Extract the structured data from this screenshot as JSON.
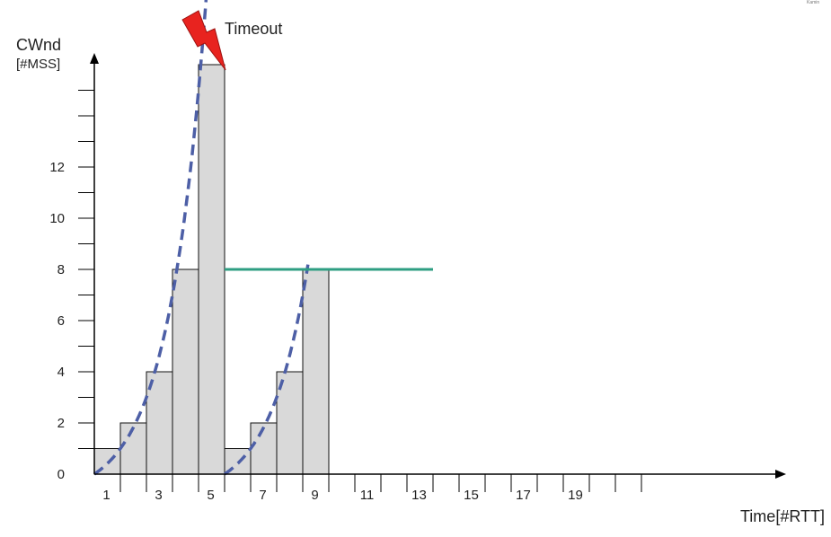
{
  "chart_data": {
    "type": "bar",
    "xlabel": "Time[#RTT]",
    "ylabel": "CWnd",
    "ylabel_unit": "[#MSS]",
    "x_tick_labels": [
      "1",
      "3",
      "5",
      "7",
      "9",
      "11",
      "13",
      "15",
      "17",
      "19"
    ],
    "x_tick_values": [
      1,
      3,
      5,
      7,
      9,
      11,
      13,
      15,
      17,
      19
    ],
    "y_tick_labels": [
      "0",
      "2",
      "4",
      "6",
      "8",
      "10",
      "12"
    ],
    "y_tick_values": [
      0,
      2,
      4,
      6,
      8,
      10,
      12
    ],
    "xlim": [
      0.5,
      22.5
    ],
    "ylim": [
      0,
      16
    ],
    "x_minor_step": 1,
    "y_minor_step": 1,
    "grid": false,
    "bars": {
      "x": [
        1,
        2,
        3,
        4,
        5,
        6,
        7,
        8,
        9
      ],
      "values": [
        1,
        2,
        4,
        8,
        16,
        1,
        2,
        4,
        8
      ],
      "color": "#d9d9d9"
    },
    "threshold_line": {
      "y": 8,
      "x_from": 5.5,
      "x_to": 13.5,
      "color": "#2e9e82"
    },
    "exponential_curves": [
      {
        "x_from": 0.5,
        "x_to": 5.0,
        "origin": 0.5,
        "color": "#4d5fa6"
      },
      {
        "x_from": 5.5,
        "x_to": 8.7,
        "origin": 5.5,
        "color": "#4d5fa6"
      }
    ],
    "annotations": [
      {
        "text": "Timeout",
        "x": 5,
        "icon": "lightning-bolt-icon",
        "color": "#e8231f"
      }
    ]
  },
  "corner_mark": "Kamin"
}
